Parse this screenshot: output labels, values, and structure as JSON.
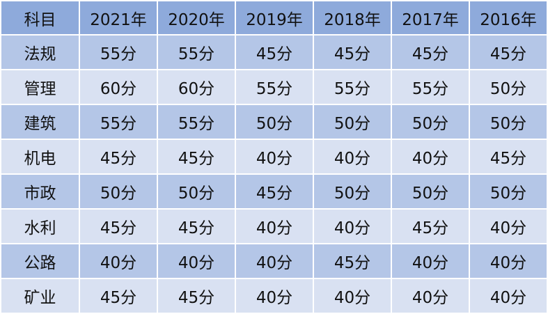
{
  "colors": {
    "header": "#8eaadb",
    "row_odd": "#b4c6e7",
    "row_even": "#d9e1f2"
  },
  "table": {
    "headers": [
      "科目",
      "2021年",
      "2020年",
      "2019年",
      "2018年",
      "2017年",
      "2016年"
    ],
    "rows": [
      [
        "法规",
        "55分",
        "55分",
        "45分",
        "45分",
        "45分",
        "45分"
      ],
      [
        "管理",
        "60分",
        "60分",
        "55分",
        "55分",
        "55分",
        "50分"
      ],
      [
        "建筑",
        "55分",
        "55分",
        "50分",
        "50分",
        "50分",
        "50分"
      ],
      [
        "机电",
        "45分",
        "45分",
        "40分",
        "40分",
        "40分",
        "45分"
      ],
      [
        "市政",
        "50分",
        "50分",
        "45分",
        "50分",
        "50分",
        "50分"
      ],
      [
        "水利",
        "45分",
        "45分",
        "40分",
        "40分",
        "45分",
        "40分"
      ],
      [
        "公路",
        "40分",
        "40分",
        "40分",
        "45分",
        "40分",
        "40分"
      ],
      [
        "矿业",
        "45分",
        "45分",
        "40分",
        "40分",
        "40分",
        "40分"
      ]
    ]
  }
}
